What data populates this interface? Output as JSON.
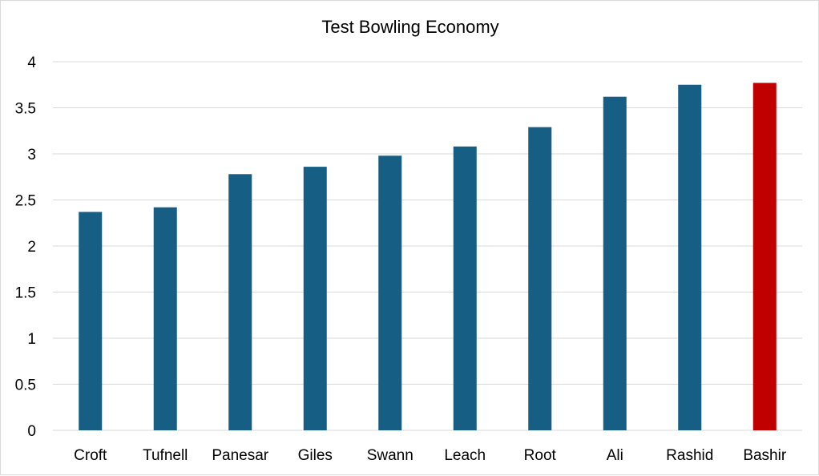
{
  "chart_data": {
    "type": "bar",
    "title": "Test Bowling Economy",
    "xlabel": "",
    "ylabel": "",
    "categories": [
      "Croft",
      "Tufnell",
      "Panesar",
      "Giles",
      "Swann",
      "Leach",
      "Root",
      "Ali",
      "Rashid",
      "Bashir"
    ],
    "values": [
      2.37,
      2.42,
      2.78,
      2.86,
      2.98,
      3.08,
      3.29,
      3.62,
      3.75,
      3.77
    ],
    "ylim": [
      0,
      4
    ],
    "yticks": [
      "0",
      "0.5",
      "1",
      "1.5",
      "2",
      "2.5",
      "3",
      "3.5",
      "4"
    ],
    "grid": true,
    "legend": "none",
    "colors": {
      "bar": "#175E84",
      "highlight": "#C00000",
      "highlight_category": "Bashir",
      "grid": "#D9D9D9"
    }
  }
}
